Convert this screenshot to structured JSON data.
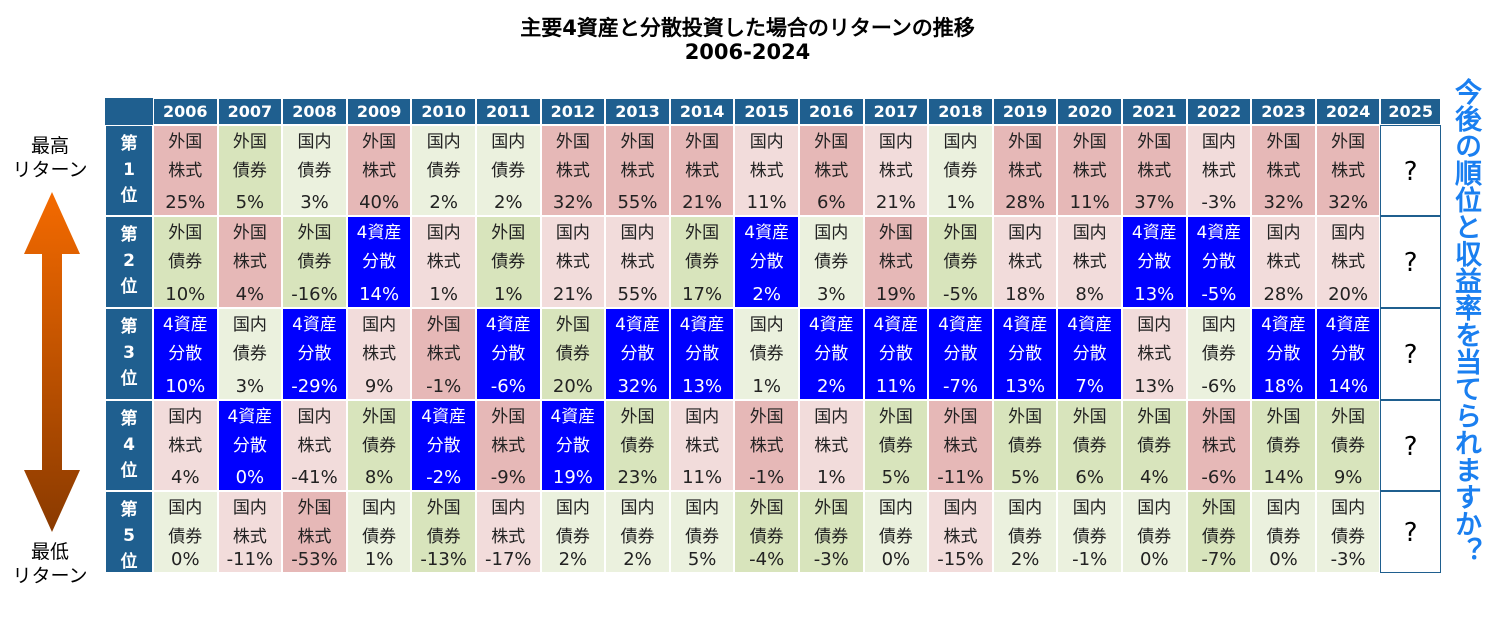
{
  "header": {
    "title": "主要4資産と分散投資した場合のリターンの推移",
    "subtitle": "2006-2024"
  },
  "side": {
    "top": [
      "最高",
      "リターン"
    ],
    "bottom": [
      "最低",
      "リターン"
    ],
    "question": "今後の順位と収益率を当てられますか？"
  },
  "table": {
    "years": [
      "2006",
      "2007",
      "2008",
      "2009",
      "2010",
      "2011",
      "2012",
      "2013",
      "2014",
      "2015",
      "2016",
      "2017",
      "2018",
      "2019",
      "2020",
      "2021",
      "2022",
      "2023",
      "2024",
      "2025"
    ],
    "header_color": "#1f5f8f",
    "asset_colors": {
      "外国株式": {
        "fill": "#e6b8b7",
        "text": "#222"
      },
      "国内株式": {
        "fill": "#f2dcdb",
        "text": "#222"
      },
      "外国債券": {
        "fill": "#d8e4bc",
        "text": "#222"
      },
      "国内債券": {
        "fill": "#ebf1de",
        "text": "#222"
      },
      "4資産分散": {
        "fill": "#0000ff",
        "text": "#ffffff"
      }
    },
    "rows": [
      {
        "rank": [
          "第",
          "1",
          "位"
        ],
        "unknown": "?",
        "cells": [
          [
            "外国",
            "株式",
            "25%"
          ],
          [
            "外国",
            "債券",
            "5%"
          ],
          [
            "国内",
            "債券",
            "3%"
          ],
          [
            "外国",
            "株式",
            "40%"
          ],
          [
            "国内",
            "債券",
            "2%"
          ],
          [
            "国内",
            "債券",
            "2%"
          ],
          [
            "外国",
            "株式",
            "32%"
          ],
          [
            "外国",
            "株式",
            "55%"
          ],
          [
            "外国",
            "株式",
            "21%"
          ],
          [
            "国内",
            "株式",
            "11%"
          ],
          [
            "外国",
            "株式",
            "6%"
          ],
          [
            "国内",
            "株式",
            "21%"
          ],
          [
            "国内",
            "債券",
            "1%"
          ],
          [
            "外国",
            "株式",
            "28%"
          ],
          [
            "外国",
            "株式",
            "11%"
          ],
          [
            "外国",
            "株式",
            "37%"
          ],
          [
            "国内",
            "株式",
            "-3%"
          ],
          [
            "外国",
            "株式",
            "32%"
          ],
          [
            "外国",
            "株式",
            "32%"
          ]
        ]
      },
      {
        "rank": [
          "第",
          "2",
          "位"
        ],
        "unknown": "?",
        "cells": [
          [
            "外国",
            "債券",
            "10%"
          ],
          [
            "外国",
            "株式",
            "4%"
          ],
          [
            "外国",
            "債券",
            "-16%"
          ],
          [
            "4資産",
            "分散",
            "14%"
          ],
          [
            "国内",
            "株式",
            "1%"
          ],
          [
            "外国",
            "債券",
            "1%"
          ],
          [
            "国内",
            "株式",
            "21%"
          ],
          [
            "国内",
            "株式",
            "55%"
          ],
          [
            "外国",
            "債券",
            "17%"
          ],
          [
            "4資産",
            "分散",
            "2%"
          ],
          [
            "国内",
            "債券",
            "3%"
          ],
          [
            "外国",
            "株式",
            "19%"
          ],
          [
            "外国",
            "債券",
            "-5%"
          ],
          [
            "国内",
            "株式",
            "18%"
          ],
          [
            "国内",
            "株式",
            "8%"
          ],
          [
            "4資産",
            "分散",
            "13%"
          ],
          [
            "4資産",
            "分散",
            "-5%"
          ],
          [
            "国内",
            "株式",
            "28%"
          ],
          [
            "国内",
            "株式",
            "20%"
          ]
        ]
      },
      {
        "rank": [
          "第",
          "3",
          "位"
        ],
        "unknown": "?",
        "cells": [
          [
            "4資産",
            "分散",
            "10%"
          ],
          [
            "国内",
            "債券",
            "3%"
          ],
          [
            "4資産",
            "分散",
            "-29%"
          ],
          [
            "国内",
            "株式",
            "9%"
          ],
          [
            "外国",
            "株式",
            "-1%"
          ],
          [
            "4資産",
            "分散",
            "-6%"
          ],
          [
            "外国",
            "債券",
            "20%"
          ],
          [
            "4資産",
            "分散",
            "32%"
          ],
          [
            "4資産",
            "分散",
            "13%"
          ],
          [
            "国内",
            "債券",
            "1%"
          ],
          [
            "4資産",
            "分散",
            "2%"
          ],
          [
            "4資産",
            "分散",
            "11%"
          ],
          [
            "4資産",
            "分散",
            "-7%"
          ],
          [
            "4資産",
            "分散",
            "13%"
          ],
          [
            "4資産",
            "分散",
            "7%"
          ],
          [
            "国内",
            "株式",
            "13%"
          ],
          [
            "国内",
            "債券",
            "-6%"
          ],
          [
            "4資産",
            "分散",
            "18%"
          ],
          [
            "4資産",
            "分散",
            "14%"
          ]
        ]
      },
      {
        "rank": [
          "第",
          "4",
          "位"
        ],
        "unknown": "?",
        "cells": [
          [
            "国内",
            "株式",
            "4%"
          ],
          [
            "4資産",
            "分散",
            "0%"
          ],
          [
            "国内",
            "株式",
            "-41%"
          ],
          [
            "外国",
            "債券",
            "8%"
          ],
          [
            "4資産",
            "分散",
            "-2%"
          ],
          [
            "外国",
            "株式",
            "-9%"
          ],
          [
            "4資産",
            "分散",
            "19%"
          ],
          [
            "外国",
            "債券",
            "23%"
          ],
          [
            "国内",
            "株式",
            "11%"
          ],
          [
            "外国",
            "株式",
            "-1%"
          ],
          [
            "国内",
            "株式",
            "1%"
          ],
          [
            "外国",
            "債券",
            "5%"
          ],
          [
            "外国",
            "株式",
            "-11%"
          ],
          [
            "外国",
            "債券",
            "5%"
          ],
          [
            "外国",
            "債券",
            "6%"
          ],
          [
            "外国",
            "債券",
            "4%"
          ],
          [
            "外国",
            "株式",
            "-6%"
          ],
          [
            "外国",
            "債券",
            "14%"
          ],
          [
            "外国",
            "債券",
            "9%"
          ]
        ]
      },
      {
        "rank": [
          "第",
          "5",
          "位"
        ],
        "unknown": "?",
        "cells": [
          [
            "国内",
            "債券",
            "0%"
          ],
          [
            "国内",
            "株式",
            "-11%"
          ],
          [
            "外国",
            "株式",
            "-53%"
          ],
          [
            "国内",
            "債券",
            "1%"
          ],
          [
            "外国",
            "債券",
            "-13%"
          ],
          [
            "国内",
            "株式",
            "-17%"
          ],
          [
            "国内",
            "債券",
            "2%"
          ],
          [
            "国内",
            "債券",
            "2%"
          ],
          [
            "国内",
            "債券",
            "5%"
          ],
          [
            "外国",
            "債券",
            "-4%"
          ],
          [
            "外国",
            "債券",
            "-3%"
          ],
          [
            "国内",
            "債券",
            "0%"
          ],
          [
            "国内",
            "株式",
            "-15%"
          ],
          [
            "国内",
            "債券",
            "2%"
          ],
          [
            "国内",
            "債券",
            "-1%"
          ],
          [
            "国内",
            "債券",
            "0%"
          ],
          [
            "外国",
            "債券",
            "-7%"
          ],
          [
            "国内",
            "債券",
            "0%"
          ],
          [
            "国内",
            "債券",
            "-3%"
          ]
        ]
      }
    ]
  }
}
